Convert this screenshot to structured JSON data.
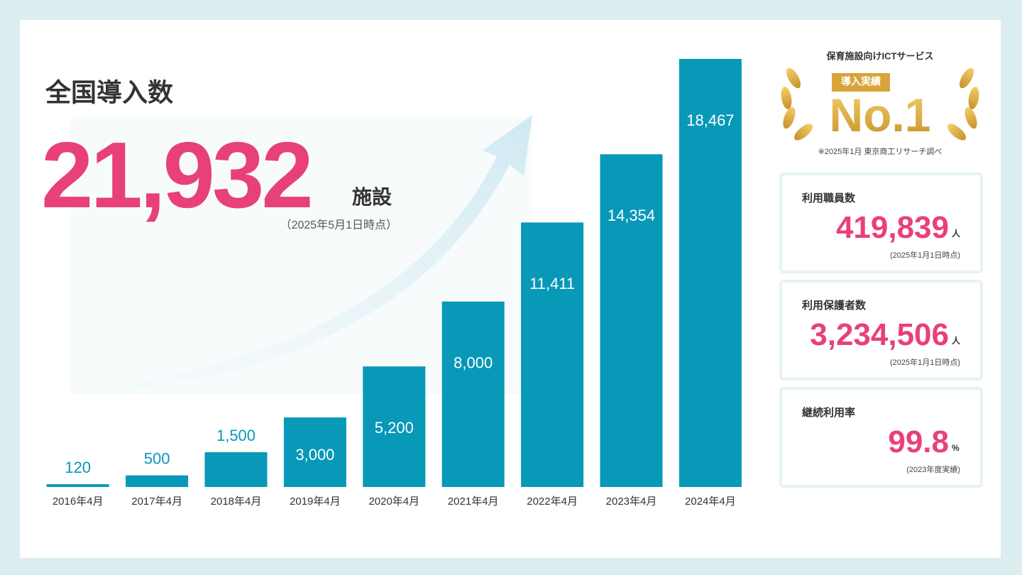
{
  "headline": {
    "title": "全国導入数",
    "value": "21,932",
    "unit": "施設",
    "note": "（2025年5月1日時点）"
  },
  "badge": {
    "caption": "保育施設向けICTサービス",
    "tag": "導入実績",
    "rank": "No.1",
    "source": "※2025年1月 東京商工リサーチ調べ"
  },
  "stats": [
    {
      "label": "利用職員数",
      "value": "419,839",
      "unit": "人",
      "note": "(2025年1月1日時点)"
    },
    {
      "label": "利用保護者数",
      "value": "3,234,506",
      "unit": "人",
      "note": "(2025年1月1日時点)"
    },
    {
      "label": "継続利用率",
      "value": "99.8",
      "unit": "%",
      "note": "(2023年度実績)"
    }
  ],
  "chart_data": {
    "type": "bar",
    "categories": [
      "2016年4月",
      "2017年4月",
      "2018年4月",
      "2019年4月",
      "2020年4月",
      "2021年4月",
      "2022年4月",
      "2023年4月",
      "2024年4月"
    ],
    "values": [
      120,
      500,
      1500,
      3000,
      5200,
      8000,
      11411,
      14354,
      18467
    ],
    "value_labels": [
      "120",
      "500",
      "1,500",
      "3,000",
      "5,200",
      "8,000",
      "11,411",
      "14,354",
      "18,467"
    ],
    "color": "#0898b8"
  }
}
